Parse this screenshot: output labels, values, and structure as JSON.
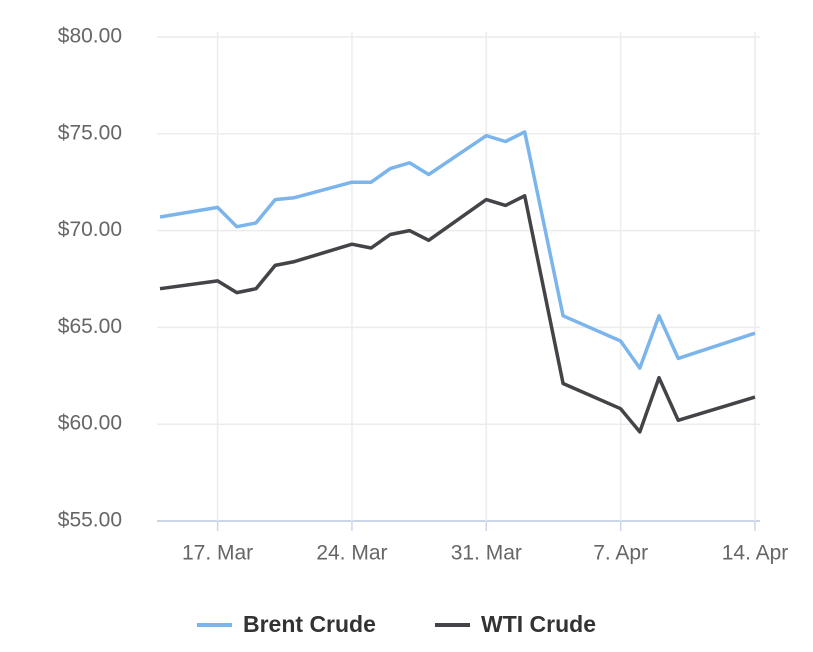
{
  "chart_data": {
    "type": "line",
    "x": [
      "03-14",
      "03-17",
      "03-18",
      "03-19",
      "03-20",
      "03-21",
      "03-24",
      "03-25",
      "03-26",
      "03-27",
      "03-28",
      "03-31",
      "04-01",
      "04-02",
      "04-04",
      "04-07",
      "04-08",
      "04-09",
      "04-10",
      "04-14"
    ],
    "series": [
      {
        "name": "Brent Crude",
        "color": "#7cb5ec",
        "values": [
          70.7,
          71.2,
          70.2,
          70.4,
          71.6,
          71.7,
          72.5,
          72.5,
          73.2,
          73.5,
          72.9,
          74.9,
          74.6,
          75.1,
          65.6,
          64.3,
          62.9,
          65.6,
          63.4,
          64.7
        ]
      },
      {
        "name": "WTI Crude",
        "color": "#434348",
        "values": [
          67.0,
          67.4,
          66.8,
          67.0,
          68.2,
          68.4,
          69.3,
          69.1,
          69.8,
          70.0,
          69.5,
          71.6,
          71.3,
          71.8,
          62.1,
          60.8,
          59.6,
          62.4,
          60.2,
          61.4
        ]
      }
    ],
    "xlim": [
      "03-14",
      "04-14"
    ],
    "xticks": [
      {
        "value": "03-17",
        "label": "17. Mar"
      },
      {
        "value": "03-24",
        "label": "24. Mar"
      },
      {
        "value": "03-31",
        "label": "31. Mar"
      },
      {
        "value": "04-07",
        "label": "7. Apr"
      },
      {
        "value": "04-14",
        "label": "14. Apr"
      }
    ],
    "ylim": [
      55,
      80
    ],
    "yticks": [
      {
        "value": 55,
        "label": "$55.00"
      },
      {
        "value": 60,
        "label": "$60.00"
      },
      {
        "value": 65,
        "label": "$65.00"
      },
      {
        "value": 70,
        "label": "$70.00"
      },
      {
        "value": 75,
        "label": "$75.00"
      },
      {
        "value": 80,
        "label": "$80.00"
      }
    ],
    "grid": true
  }
}
